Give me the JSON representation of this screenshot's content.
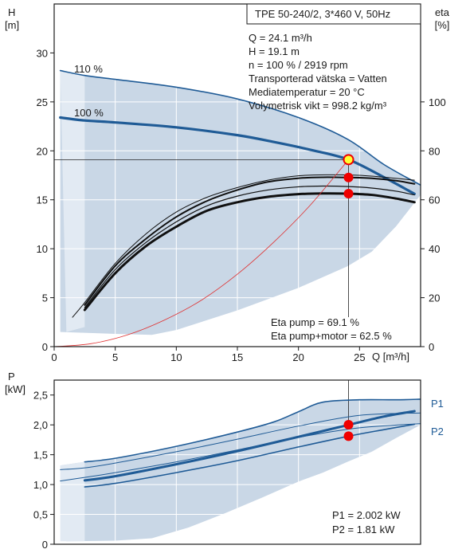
{
  "colors": {
    "background": "#ffffff",
    "envelope": "#c9d7e6",
    "envelope_light": "#e2eaf3",
    "curve_blue": "#1f5b96",
    "eff_black": "#101010",
    "system_red": "#e03030",
    "point_red": "#f00000",
    "point_yellow": "#ffff33",
    "grid": "#ffffff",
    "frame": "#1a1a1a"
  },
  "chart_data": [
    {
      "type": "line",
      "id": "pump-curve",
      "xlabel": "Q [m³/h]",
      "ylabel_left": {
        "name": "H",
        "unit": "[m]"
      },
      "ylabel_right": {
        "name": "eta",
        "unit": "[%]"
      },
      "xlim": [
        0,
        30
      ],
      "ylim": [
        0,
        35
      ],
      "ylim_right": [
        0,
        140
      ],
      "x_ticks": [
        0,
        5,
        10,
        15,
        20,
        25
      ],
      "y_ticks": [
        0,
        5,
        10,
        15,
        20,
        25,
        30
      ],
      "y_ticks_right": [
        0,
        20,
        40,
        60,
        80,
        100
      ],
      "grid": true,
      "info_box": "TPE 50-240/2, 3*460 V, 50Hz",
      "operating_info": [
        "Q = 24.1 m³/h",
        "H = 19.1 m",
        "n = 100 % / 2919 rpm",
        "Transporterad vätska = Vatten",
        "Mediatemperatur = 20 °C",
        "Volymetrisk vikt = 998.2 kg/m³"
      ],
      "efficiency_info": [
        "Eta pump = 69.1 %",
        "Eta pump+motor = 62.5 %"
      ],
      "envelope": {
        "upper": [
          [
            0.5,
            28.2
          ],
          [
            2.5,
            27.7
          ],
          [
            5,
            27.3
          ],
          [
            10,
            26.5
          ],
          [
            15,
            25.3
          ],
          [
            20,
            23.4
          ],
          [
            24,
            21.2
          ],
          [
            27,
            18.6
          ],
          [
            30,
            16.5
          ]
        ],
        "lower": [
          [
            30,
            15.5
          ],
          [
            28,
            12.3
          ],
          [
            26,
            9.7
          ],
          [
            24,
            8.2
          ],
          [
            20,
            6.0
          ],
          [
            15,
            3.7
          ],
          [
            10,
            1.7
          ],
          [
            8,
            1.2
          ],
          [
            5,
            1.3
          ],
          [
            0.5,
            1.5
          ]
        ]
      },
      "series": [
        {
          "name": "110 %",
          "kind": "head",
          "width": 1.6,
          "points": [
            [
              0.5,
              28.2
            ],
            [
              2.5,
              27.7
            ],
            [
              5,
              27.3
            ],
            [
              10,
              26.5
            ],
            [
              15,
              25.3
            ],
            [
              20,
              23.4
            ],
            [
              24,
              21.2
            ],
            [
              27,
              18.6
            ],
            [
              30,
              16.5
            ]
          ]
        },
        {
          "name": "100 %",
          "kind": "head",
          "width": 3.2,
          "points": [
            [
              0.5,
              23.4
            ],
            [
              2.5,
              23.1
            ],
            [
              5,
              22.9
            ],
            [
              10,
              22.4
            ],
            [
              15,
              21.6
            ],
            [
              18,
              20.9
            ],
            [
              21,
              20.1
            ],
            [
              24.1,
              19.1
            ],
            [
              27,
              17.3
            ],
            [
              29.5,
              15.6
            ]
          ]
        },
        {
          "kind": "efficiency_thin",
          "width": 1.0,
          "axis": "right",
          "points": [
            [
              1.5,
              12
            ],
            [
              2.5,
              18
            ],
            [
              5,
              34
            ],
            [
              7.5,
              46
            ],
            [
              10,
              55
            ],
            [
              12.5,
              61
            ],
            [
              15,
              65
            ],
            [
              17.5,
              68
            ],
            [
              20,
              69.8
            ],
            [
              22.5,
              70.2
            ],
            [
              25,
              70
            ],
            [
              27.5,
              69
            ],
            [
              29.5,
              68
            ]
          ]
        },
        {
          "kind": "efficiency_pump",
          "width": 2.0,
          "axis": "right",
          "points": [
            [
              2.5,
              17
            ],
            [
              5,
              33
            ],
            [
              7.5,
              44
            ],
            [
              10,
              53
            ],
            [
              12.5,
              59.5
            ],
            [
              15,
              64
            ],
            [
              17.5,
              67.3
            ],
            [
              20,
              68.8
            ],
            [
              22,
              69.2
            ],
            [
              24.1,
              69.1
            ],
            [
              26,
              68.8
            ],
            [
              28,
              67.8
            ],
            [
              29.5,
              66.5
            ]
          ]
        },
        {
          "kind": "efficiency_motor",
          "width": 3.0,
          "axis": "right",
          "points": [
            [
              2.5,
              15
            ],
            [
              5,
              30
            ],
            [
              7.5,
              41
            ],
            [
              10,
              49
            ],
            [
              12.5,
              55.5
            ],
            [
              15,
              59
            ],
            [
              17.5,
              61.2
            ],
            [
              20,
              62.3
            ],
            [
              22,
              62.6
            ],
            [
              24.1,
              62.5
            ],
            [
              26,
              62
            ],
            [
              28,
              60.5
            ],
            [
              29.5,
              59
            ]
          ]
        },
        {
          "kind": "efficiency_extra",
          "width": 1.2,
          "axis": "right",
          "points": [
            [
              2.5,
              16
            ],
            [
              5,
              31.5
            ],
            [
              7.5,
              42.5
            ],
            [
              10,
              51
            ],
            [
              12.5,
              57.5
            ],
            [
              15,
              61.5
            ],
            [
              17.5,
              64
            ],
            [
              20,
              65.3
            ],
            [
              22,
              65.6
            ],
            [
              24.1,
              65.4
            ],
            [
              26,
              64.8
            ],
            [
              28,
              63.5
            ],
            [
              29.5,
              62
            ]
          ]
        },
        {
          "kind": "system",
          "width": 0.8,
          "points": [
            [
              0,
              0
            ],
            [
              3,
              0.3
            ],
            [
              6,
              1.2
            ],
            [
              9,
              2.7
            ],
            [
              12,
              4.7
            ],
            [
              15,
              7.4
            ],
            [
              18,
              10.7
            ],
            [
              21,
              14.5
            ],
            [
              24.1,
              19.1
            ]
          ]
        }
      ],
      "markers": [
        {
          "label": "operating-point",
          "x": 24.1,
          "y": 19.1,
          "axis": "left",
          "style": "yellow"
        },
        {
          "label": "eta-pump-point",
          "x": 24.1,
          "y": 69.1,
          "axis": "right",
          "style": "red"
        },
        {
          "label": "eta-motor-point",
          "x": 24.1,
          "y": 62.5,
          "axis": "right",
          "style": "red"
        }
      ],
      "reference_lines": {
        "x": 24.1,
        "y": 19.1
      }
    },
    {
      "type": "line",
      "id": "power-curve",
      "ylabel": {
        "name": "P",
        "unit": "[kW]"
      },
      "xlim": [
        0,
        30
      ],
      "ylim": [
        0,
        2.75
      ],
      "y_ticks": [
        "0",
        "0,5",
        "1,0",
        "1,5",
        "2,0",
        "2,5"
      ],
      "y_tick_values": [
        0,
        0.5,
        1.0,
        1.5,
        2.0,
        2.5
      ],
      "grid": true,
      "power_info": [
        "P1 = 2.002 kW",
        "P2 = 1.81 kW"
      ],
      "envelope": {
        "upper": [
          [
            0.5,
            1.32
          ],
          [
            2.5,
            1.38
          ],
          [
            5,
            1.44
          ],
          [
            10,
            1.64
          ],
          [
            15,
            1.88
          ],
          [
            18,
            2.05
          ],
          [
            20,
            2.22
          ],
          [
            22,
            2.38
          ],
          [
            25,
            2.42
          ],
          [
            28,
            2.42
          ],
          [
            30,
            2.43
          ]
        ],
        "lower": [
          [
            30,
            2.0
          ],
          [
            28,
            1.78
          ],
          [
            26,
            1.55
          ],
          [
            24,
            1.38
          ],
          [
            22,
            1.2
          ],
          [
            20,
            1.05
          ],
          [
            17,
            0.78
          ],
          [
            14,
            0.52
          ],
          [
            11,
            0.28
          ],
          [
            8,
            0.1
          ],
          [
            5,
            0.06
          ],
          [
            1,
            0.05
          ]
        ]
      },
      "series": [
        {
          "name": "P1",
          "kind": "p1_110",
          "width": 1.6,
          "points": [
            [
              2.5,
              1.38
            ],
            [
              5,
              1.44
            ],
            [
              10,
              1.64
            ],
            [
              15,
              1.88
            ],
            [
              18,
              2.05
            ],
            [
              20,
              2.22
            ],
            [
              22,
              2.38
            ],
            [
              25,
              2.42
            ],
            [
              28,
              2.42
            ],
            [
              30,
              2.43
            ]
          ]
        },
        {
          "kind": "thin_top",
          "width": 1.0,
          "points": [
            [
              0.5,
              1.25
            ],
            [
              2.5,
              1.28
            ],
            [
              5,
              1.36
            ],
            [
              10,
              1.55
            ],
            [
              15,
              1.76
            ],
            [
              20,
              1.98
            ],
            [
              25,
              2.16
            ],
            [
              30,
              2.2
            ]
          ]
        },
        {
          "kind": "p1_100",
          "width": 3.0,
          "points": [
            [
              2.5,
              1.07
            ],
            [
              5,
              1.14
            ],
            [
              10,
              1.34
            ],
            [
              15,
              1.56
            ],
            [
              20,
              1.8
            ],
            [
              24.1,
              2.0
            ],
            [
              27,
              2.14
            ],
            [
              29.5,
              2.23
            ]
          ]
        },
        {
          "kind": "thin_mid",
          "width": 1.0,
          "points": [
            [
              0.5,
              1.06
            ],
            [
              2.5,
              1.12
            ],
            [
              5,
              1.2
            ],
            [
              10,
              1.38
            ],
            [
              15,
              1.58
            ],
            [
              20,
              1.79
            ],
            [
              25,
              1.95
            ],
            [
              30,
              2.02
            ]
          ]
        },
        {
          "name": "P2",
          "kind": "p2_100",
          "width": 1.6,
          "points": [
            [
              2.5,
              0.96
            ],
            [
              5,
              1.02
            ],
            [
              10,
              1.2
            ],
            [
              15,
              1.4
            ],
            [
              20,
              1.63
            ],
            [
              24.1,
              1.81
            ],
            [
              27,
              1.92
            ],
            [
              29.5,
              2.01
            ]
          ]
        }
      ],
      "legend": [
        "P1",
        "P2"
      ],
      "markers": [
        {
          "label": "p1-point",
          "x": 24.1,
          "y": 2.002,
          "style": "red"
        },
        {
          "label": "p2-point",
          "x": 24.1,
          "y": 1.81,
          "style": "red"
        }
      ],
      "reference_lines": {
        "x": 24.1
      }
    }
  ]
}
